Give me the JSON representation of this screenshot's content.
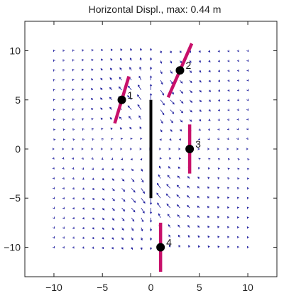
{
  "chart_data": {
    "type": "quiver",
    "title": "Horizontal Displ., max: 0.44 m",
    "xlim": [
      -13,
      13
    ],
    "ylim": [
      -13,
      13
    ],
    "xticks": [
      -10,
      -5,
      0,
      5,
      10
    ],
    "yticks": [
      -10,
      -5,
      0,
      5,
      10
    ],
    "xtick_labels": [
      "−10",
      "−5",
      "0",
      "5",
      "10"
    ],
    "ytick_labels": [
      "10",
      "5",
      "0",
      "−5",
      "−10"
    ],
    "grid": false,
    "vector_grid": {
      "x_min": -10,
      "x_max": 10,
      "y_min": -10,
      "y_max": 10,
      "step": 1
    },
    "fault": {
      "x1": 0,
      "y1": 5,
      "x2": 0,
      "y2": -5,
      "color": "#000000"
    },
    "stations": [
      {
        "label": "1",
        "x": -3,
        "y": 5,
        "azimuth_deg": 17,
        "bar_length": 5
      },
      {
        "label": "2",
        "x": 3,
        "y": 8,
        "azimuth_deg": 24,
        "bar_length": 6
      },
      {
        "label": "3",
        "x": 4,
        "y": 0,
        "azimuth_deg": 0,
        "bar_length": 5
      },
      {
        "label": "4",
        "x": 1,
        "y": -10,
        "azimuth_deg": 0,
        "bar_length": 5
      }
    ],
    "colors": {
      "vectors": "#1f1f9e",
      "station_bars": "#c8106a",
      "stations": "#000000",
      "axes": "#222222"
    }
  }
}
